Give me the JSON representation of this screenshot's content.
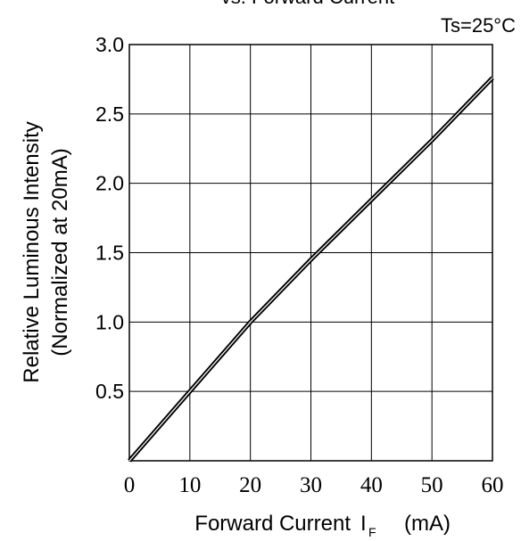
{
  "chart_data": {
    "type": "line",
    "title": "vs. Forward Current",
    "annotation": "Ts=25°C",
    "xlabel": {
      "main": "Forward Current",
      "symbol": "I",
      "subscript": "F",
      "unit": "(mA)"
    },
    "ylabel": {
      "line1": "Relative Luminous Intensity",
      "line2": "(Normalized at 20mA)"
    },
    "xlim": [
      0,
      60
    ],
    "ylim": [
      0,
      3.0
    ],
    "x_ticks": [
      "0",
      "10",
      "20",
      "30",
      "40",
      "50",
      "60"
    ],
    "y_ticks": [
      "0.5",
      "1.0",
      "1.5",
      "2.0",
      "2.5",
      "3.0"
    ],
    "grid": true,
    "series": [
      {
        "color": "#000000",
        "points": [
          [
            0,
            0.0
          ],
          [
            10,
            0.5
          ],
          [
            20,
            1.0
          ],
          [
            30,
            1.45
          ],
          [
            40,
            1.88
          ],
          [
            50,
            2.31
          ],
          [
            60,
            2.76
          ]
        ]
      }
    ]
  }
}
